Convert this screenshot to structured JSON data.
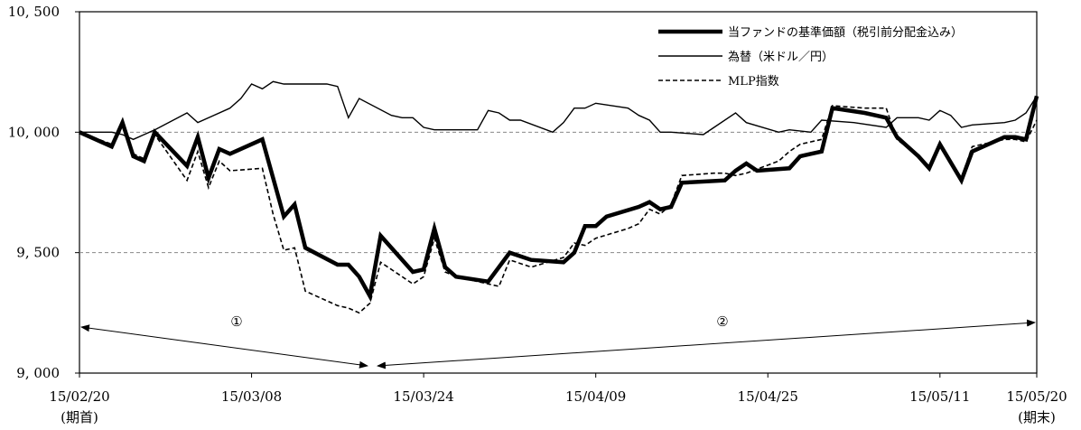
{
  "chart_data": {
    "type": "line",
    "title": "",
    "xlabel": "",
    "ylabel": "",
    "ylim": [
      9000,
      10500
    ],
    "y_ticks": [
      9000,
      9500,
      10000,
      10500
    ],
    "y_tick_labels": [
      "9, 000",
      "9, 500",
      "10, 000",
      "10, 500"
    ],
    "x_range": [
      0,
      89
    ],
    "x_ticks": [
      {
        "x": 0,
        "label": "15/02/20",
        "sub": "(期首)"
      },
      {
        "x": 16,
        "label": "15/03/08",
        "sub": ""
      },
      {
        "x": 32,
        "label": "15/03/24",
        "sub": ""
      },
      {
        "x": 48,
        "label": "15/04/09",
        "sub": ""
      },
      {
        "x": 64,
        "label": "15/04/25",
        "sub": ""
      },
      {
        "x": 80,
        "label": "15/05/11",
        "sub": ""
      },
      {
        "x": 89,
        "label": "15/05/20",
        "sub": "(期末)"
      }
    ],
    "grid": "horizontal dashed at 9,500 and 10,000",
    "legend_position": "top-right",
    "series": [
      {
        "name": "当ファンドの基準価額（税引前分配金込み）",
        "style": "thick",
        "points": [
          [
            0,
            10000
          ],
          [
            3,
            9940
          ],
          [
            4,
            10040
          ],
          [
            5,
            9900
          ],
          [
            6,
            9880
          ],
          [
            7,
            10000
          ],
          [
            10,
            9860
          ],
          [
            11,
            9980
          ],
          [
            12,
            9810
          ],
          [
            13,
            9930
          ],
          [
            14,
            9910
          ],
          [
            17,
            9970
          ],
          [
            19,
            9650
          ],
          [
            20,
            9700
          ],
          [
            21,
            9520
          ],
          [
            24,
            9450
          ],
          [
            25,
            9450
          ],
          [
            26,
            9400
          ],
          [
            27,
            9320
          ],
          [
            28,
            9570
          ],
          [
            31,
            9420
          ],
          [
            32,
            9430
          ],
          [
            33,
            9600
          ],
          [
            34,
            9440
          ],
          [
            35,
            9400
          ],
          [
            38,
            9380
          ],
          [
            40,
            9500
          ],
          [
            42,
            9470
          ],
          [
            45,
            9460
          ],
          [
            46,
            9500
          ],
          [
            47,
            9610
          ],
          [
            48,
            9610
          ],
          [
            49,
            9650
          ],
          [
            52,
            9690
          ],
          [
            53,
            9710
          ],
          [
            54,
            9680
          ],
          [
            55,
            9690
          ],
          [
            56,
            9790
          ],
          [
            60,
            9800
          ],
          [
            61,
            9840
          ],
          [
            62,
            9870
          ],
          [
            63,
            9840
          ],
          [
            66,
            9850
          ],
          [
            67,
            9900
          ],
          [
            68,
            9910
          ],
          [
            69,
            9920
          ],
          [
            70,
            10100
          ],
          [
            73,
            10080
          ],
          [
            75,
            10060
          ],
          [
            76,
            9980
          ],
          [
            78,
            9900
          ],
          [
            79,
            9850
          ],
          [
            80,
            9950
          ],
          [
            82,
            9800
          ],
          [
            83,
            9920
          ],
          [
            86,
            9980
          ],
          [
            87,
            9980
          ],
          [
            88,
            9970
          ],
          [
            89,
            10150
          ]
        ]
      },
      {
        "name": "為替（米ドル／円）",
        "style": "thin",
        "points": [
          [
            0,
            10000
          ],
          [
            3,
            10000
          ],
          [
            4,
            9990
          ],
          [
            5,
            9970
          ],
          [
            6,
            9990
          ],
          [
            7,
            10010
          ],
          [
            10,
            10080
          ],
          [
            11,
            10040
          ],
          [
            14,
            10100
          ],
          [
            15,
            10140
          ],
          [
            16,
            10200
          ],
          [
            17,
            10180
          ],
          [
            18,
            10210
          ],
          [
            19,
            10200
          ],
          [
            22,
            10200
          ],
          [
            23,
            10200
          ],
          [
            24,
            10190
          ],
          [
            25,
            10060
          ],
          [
            26,
            10140
          ],
          [
            29,
            10070
          ],
          [
            30,
            10060
          ],
          [
            31,
            10060
          ],
          [
            32,
            10020
          ],
          [
            33,
            10010
          ],
          [
            37,
            10010
          ],
          [
            38,
            10090
          ],
          [
            39,
            10080
          ],
          [
            40,
            10050
          ],
          [
            41,
            10050
          ],
          [
            44,
            10000
          ],
          [
            45,
            10040
          ],
          [
            46,
            10100
          ],
          [
            47,
            10100
          ],
          [
            48,
            10120
          ],
          [
            51,
            10100
          ],
          [
            52,
            10070
          ],
          [
            53,
            10050
          ],
          [
            54,
            10000
          ],
          [
            55,
            10000
          ],
          [
            58,
            9990
          ],
          [
            59,
            10020
          ],
          [
            61,
            10080
          ],
          [
            62,
            10040
          ],
          [
            65,
            10000
          ],
          [
            66,
            10010
          ],
          [
            68,
            10000
          ],
          [
            69,
            10050
          ],
          [
            72,
            10040
          ],
          [
            75,
            10020
          ],
          [
            76,
            10060
          ],
          [
            78,
            10060
          ],
          [
            79,
            10050
          ],
          [
            80,
            10090
          ],
          [
            81,
            10070
          ],
          [
            82,
            10020
          ],
          [
            83,
            10030
          ],
          [
            86,
            10040
          ],
          [
            87,
            10050
          ],
          [
            88,
            10080
          ],
          [
            89,
            10150
          ]
        ]
      },
      {
        "name": "MLP指数",
        "style": "dashed",
        "points": [
          [
            0,
            10000
          ],
          [
            3,
            9950
          ],
          [
            4,
            10030
          ],
          [
            5,
            9910
          ],
          [
            6,
            9890
          ],
          [
            7,
            9990
          ],
          [
            10,
            9800
          ],
          [
            11,
            9920
          ],
          [
            12,
            9770
          ],
          [
            13,
            9880
          ],
          [
            14,
            9840
          ],
          [
            17,
            9850
          ],
          [
            18,
            9660
          ],
          [
            19,
            9510
          ],
          [
            20,
            9520
          ],
          [
            21,
            9340
          ],
          [
            24,
            9280
          ],
          [
            25,
            9270
          ],
          [
            26,
            9250
          ],
          [
            27,
            9290
          ],
          [
            28,
            9460
          ],
          [
            31,
            9370
          ],
          [
            32,
            9400
          ],
          [
            33,
            9560
          ],
          [
            34,
            9420
          ],
          [
            35,
            9400
          ],
          [
            38,
            9370
          ],
          [
            39,
            9360
          ],
          [
            40,
            9470
          ],
          [
            42,
            9440
          ],
          [
            45,
            9480
          ],
          [
            46,
            9540
          ],
          [
            47,
            9530
          ],
          [
            48,
            9560
          ],
          [
            51,
            9600
          ],
          [
            52,
            9620
          ],
          [
            53,
            9680
          ],
          [
            54,
            9660
          ],
          [
            55,
            9700
          ],
          [
            56,
            9820
          ],
          [
            59,
            9830
          ],
          [
            60,
            9830
          ],
          [
            61,
            9820
          ],
          [
            62,
            9830
          ],
          [
            65,
            9880
          ],
          [
            66,
            9920
          ],
          [
            67,
            9950
          ],
          [
            68,
            9960
          ],
          [
            69,
            9970
          ],
          [
            70,
            10110
          ],
          [
            73,
            10100
          ],
          [
            75,
            10100
          ],
          [
            76,
            9970
          ],
          [
            78,
            9900
          ],
          [
            79,
            9860
          ],
          [
            80,
            9940
          ],
          [
            82,
            9810
          ],
          [
            83,
            9940
          ],
          [
            86,
            9970
          ],
          [
            87,
            9970
          ],
          [
            88,
            9960
          ],
          [
            89,
            10050
          ]
        ]
      }
    ],
    "annotations": [
      {
        "label": "①",
        "x_from": 0,
        "x_to": 27
      },
      {
        "label": "②",
        "x_from": 28,
        "x_to": 89
      }
    ]
  }
}
